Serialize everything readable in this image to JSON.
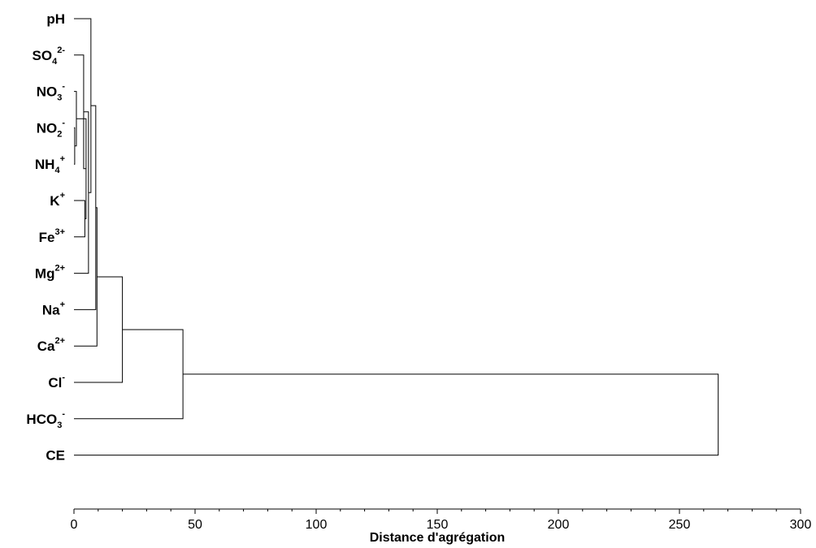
{
  "chart_data": {
    "type": "dendrogram",
    "orientation": "horizontal",
    "xlabel": "Distance d'agrégation",
    "xlim": [
      0,
      300
    ],
    "x_ticks": [
      0,
      50,
      100,
      150,
      200,
      250,
      300
    ],
    "x_tick_labels": [
      "0",
      "50",
      "100",
      "150",
      "200",
      "250",
      "300"
    ],
    "leaves": [
      {
        "id": "pH",
        "base": "pH",
        "sub": "",
        "sup": ""
      },
      {
        "id": "SO4",
        "base": "SO",
        "sub": "4",
        "sup": "2-"
      },
      {
        "id": "NO3",
        "base": "NO",
        "sub": "3",
        "sup": "-"
      },
      {
        "id": "NO2",
        "base": "NO",
        "sub": "2",
        "sup": "-"
      },
      {
        "id": "NH4",
        "base": "NH",
        "sub": "4",
        "sup": "+"
      },
      {
        "id": "K",
        "base": "K",
        "sub": "",
        "sup": "+"
      },
      {
        "id": "Fe",
        "base": "Fe",
        "sub": "",
        "sup": "3+"
      },
      {
        "id": "Mg",
        "base": "Mg",
        "sub": "",
        "sup": "2+"
      },
      {
        "id": "Na",
        "base": "Na",
        "sub": "",
        "sup": "+"
      },
      {
        "id": "Ca",
        "base": "Ca",
        "sub": "",
        "sup": "2+"
      },
      {
        "id": "Cl",
        "base": "Cl",
        "sub": "",
        "sup": "-"
      },
      {
        "id": "HCO3",
        "base": "HCO",
        "sub": "3",
        "sup": "-"
      },
      {
        "id": "CE",
        "base": "CE",
        "sub": "",
        "sup": ""
      }
    ],
    "merges": [
      {
        "id": "m1",
        "children": [
          "NO2",
          "NH4"
        ],
        "height": 0.3
      },
      {
        "id": "m2",
        "children": [
          "NO3",
          "m1"
        ],
        "height": 1.0
      },
      {
        "id": "m3",
        "children": [
          "K",
          "Fe"
        ],
        "height": 4.5
      },
      {
        "id": "m4",
        "children": [
          "m2",
          "m3"
        ],
        "height": 5.0
      },
      {
        "id": "m5",
        "children": [
          "SO4",
          "m4"
        ],
        "height": 4.0
      },
      {
        "id": "m6",
        "children": [
          "m5",
          "Mg"
        ],
        "height": 6.0
      },
      {
        "id": "m7",
        "children": [
          "pH",
          "m6"
        ],
        "height": 7.0
      },
      {
        "id": "m8",
        "children": [
          "m7",
          "Na"
        ],
        "height": 9.0
      },
      {
        "id": "m9",
        "children": [
          "m8",
          "Ca"
        ],
        "height": 9.5
      },
      {
        "id": "m10",
        "children": [
          "m9",
          "Cl"
        ],
        "height": 20.0
      },
      {
        "id": "m11",
        "children": [
          "m10",
          "HCO3"
        ],
        "height": 45.0
      },
      {
        "id": "m12",
        "children": [
          "m11",
          "CE"
        ],
        "height": 266.0
      }
    ]
  }
}
